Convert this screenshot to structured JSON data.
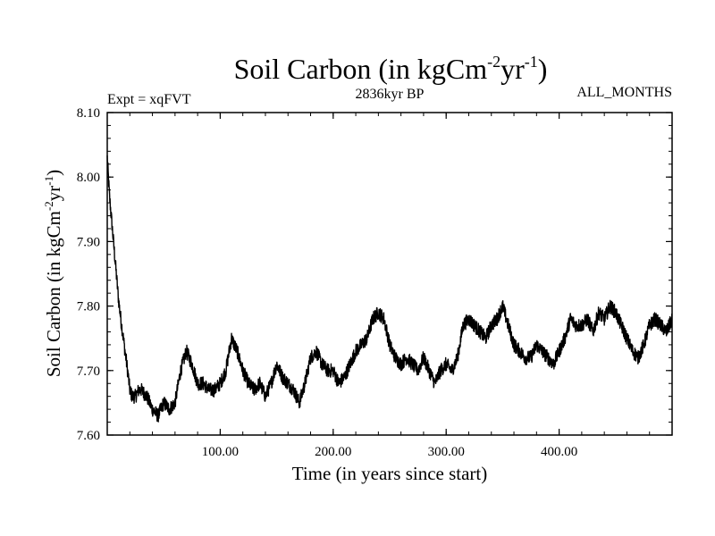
{
  "chart_data": {
    "type": "line",
    "title": {
      "base": "Soil Carbon (in kgCm",
      "sup1": "-2",
      "mid": "yr",
      "sup2": "-1",
      "end": ")"
    },
    "subtitle_left": "Expt = xqFVT",
    "subtitle_center": "2836kyr BP",
    "subtitle_right": "ALL_MONTHS",
    "xlabel": "Time (in years since start)",
    "ylabel": {
      "base": "Soil Carbon (in kgCm",
      "sup1": "-2",
      "mid": "yr",
      "sup2": "-1",
      "end": ")"
    },
    "xlim": [
      0,
      500
    ],
    "ylim": [
      7.6,
      8.1
    ],
    "xticks": [
      100,
      200,
      300,
      400
    ],
    "xtick_labels": [
      "100.00",
      "200.00",
      "300.00",
      "400.00"
    ],
    "yticks": [
      7.6,
      7.7,
      7.8,
      7.9,
      8.0,
      8.1
    ],
    "ytick_labels": [
      "7.60",
      "7.70",
      "7.80",
      "7.90",
      "8.00",
      "8.10"
    ],
    "series": [
      {
        "name": "Soil Carbon",
        "x": [
          0,
          2,
          5,
          8,
          10,
          12,
          15,
          18,
          20,
          22,
          25,
          28,
          30,
          35,
          40,
          45,
          50,
          55,
          60,
          65,
          70,
          75,
          80,
          85,
          90,
          95,
          100,
          105,
          110,
          115,
          120,
          125,
          130,
          135,
          140,
          145,
          150,
          155,
          160,
          165,
          170,
          175,
          180,
          185,
          190,
          195,
          200,
          205,
          210,
          215,
          220,
          225,
          230,
          235,
          240,
          245,
          250,
          255,
          260,
          265,
          270,
          275,
          280,
          285,
          290,
          295,
          300,
          305,
          310,
          315,
          320,
          325,
          330,
          335,
          340,
          345,
          350,
          355,
          360,
          365,
          370,
          375,
          380,
          385,
          390,
          395,
          400,
          405,
          410,
          415,
          420,
          425,
          430,
          435,
          440,
          445,
          450,
          455,
          460,
          465,
          470,
          475,
          480,
          485,
          490,
          495,
          500
        ],
        "values": [
          8.03,
          7.97,
          7.91,
          7.85,
          7.81,
          7.78,
          7.74,
          7.7,
          7.67,
          7.66,
          7.66,
          7.67,
          7.67,
          7.66,
          7.64,
          7.63,
          7.65,
          7.64,
          7.65,
          7.7,
          7.73,
          7.71,
          7.68,
          7.68,
          7.67,
          7.67,
          7.68,
          7.7,
          7.75,
          7.73,
          7.7,
          7.68,
          7.67,
          7.68,
          7.66,
          7.68,
          7.71,
          7.69,
          7.68,
          7.67,
          7.65,
          7.68,
          7.72,
          7.73,
          7.71,
          7.7,
          7.7,
          7.68,
          7.69,
          7.71,
          7.73,
          7.74,
          7.75,
          7.78,
          7.79,
          7.78,
          7.74,
          7.72,
          7.71,
          7.72,
          7.71,
          7.7,
          7.72,
          7.7,
          7.68,
          7.7,
          7.71,
          7.7,
          7.72,
          7.77,
          7.78,
          7.77,
          7.76,
          7.75,
          7.77,
          7.78,
          7.8,
          7.77,
          7.74,
          7.73,
          7.72,
          7.72,
          7.74,
          7.73,
          7.72,
          7.71,
          7.73,
          7.75,
          7.78,
          7.77,
          7.77,
          7.78,
          7.76,
          7.79,
          7.78,
          7.8,
          7.79,
          7.77,
          7.75,
          7.73,
          7.72,
          7.74,
          7.77,
          7.78,
          7.77,
          7.76,
          7.78
        ]
      }
    ]
  }
}
